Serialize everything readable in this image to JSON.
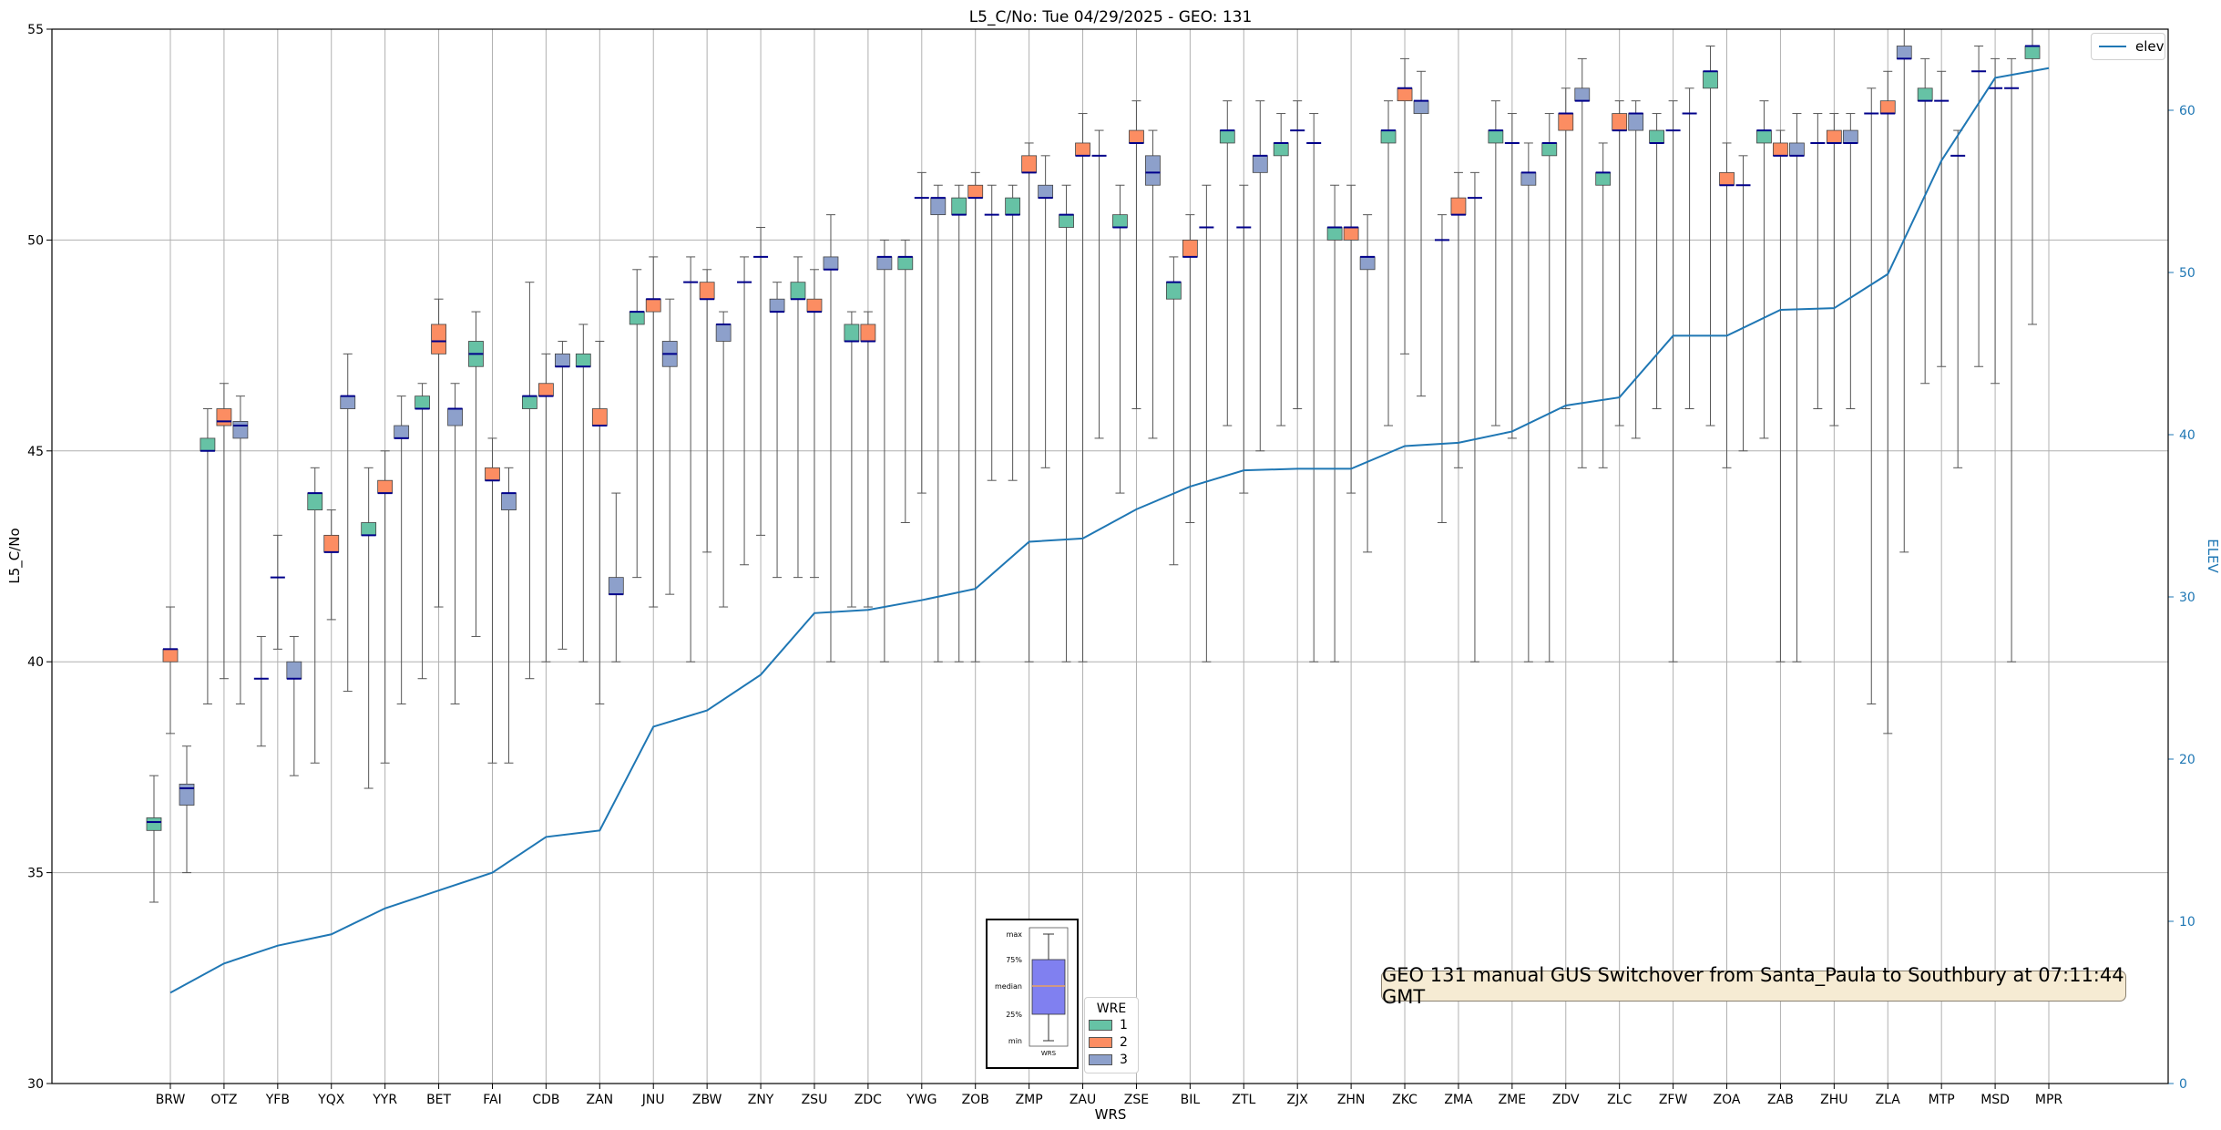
{
  "chart_data": {
    "type": "box",
    "title": "L5_C/No: Tue 04/29/2025 - GEO: 131",
    "xlabel": "WRS",
    "ylabel": "L5_C/No",
    "y2label": "ELEV",
    "ylim": [
      30,
      55
    ],
    "y2lim": [
      0,
      65
    ],
    "yticks": [
      "30",
      "35",
      "40",
      "45",
      "50",
      "55"
    ],
    "y2ticks": [
      "0",
      "10",
      "20",
      "30",
      "40",
      "50",
      "60"
    ],
    "grid": true,
    "categories": [
      "BRW",
      "OTZ",
      "YFB",
      "YQX",
      "YYR",
      "BET",
      "FAI",
      "CDB",
      "ZAN",
      "JNU",
      "ZBW",
      "ZNY",
      "ZSU",
      "ZDC",
      "YWG",
      "ZOB",
      "ZMP",
      "ZAU",
      "ZSE",
      "BIL",
      "ZTL",
      "ZJX",
      "ZHN",
      "ZKC",
      "ZMA",
      "ZME",
      "ZDV",
      "ZLC",
      "ZFW",
      "ZOA",
      "ZAB",
      "ZHU",
      "ZLA",
      "MTP",
      "MSD",
      "MPR"
    ],
    "wre_colors": {
      "1": "#66c2a5",
      "2": "#fc8d62",
      "3": "#8da0cb"
    },
    "median_color": "#00008b",
    "boxes": [
      {
        "cat": "BRW",
        "wre": 1,
        "min": 34.3,
        "q1": 36.0,
        "median": 36.2,
        "q3": 36.3,
        "max": 37.3
      },
      {
        "cat": "BRW",
        "wre": 2,
        "min": 38.3,
        "q1": 40.0,
        "median": 40.3,
        "q3": 40.3,
        "max": 41.3
      },
      {
        "cat": "BRW",
        "wre": 3,
        "min": 35.0,
        "q1": 36.6,
        "median": 37.0,
        "q3": 37.1,
        "max": 38.0
      },
      {
        "cat": "OTZ",
        "wre": 1,
        "min": 39.0,
        "q1": 45.0,
        "median": 45.0,
        "q3": 45.3,
        "max": 46.0
      },
      {
        "cat": "OTZ",
        "wre": 2,
        "min": 39.6,
        "q1": 45.6,
        "median": 45.7,
        "q3": 46.0,
        "max": 46.6
      },
      {
        "cat": "OTZ",
        "wre": 3,
        "min": 39.0,
        "q1": 45.3,
        "median": 45.6,
        "q3": 45.7,
        "max": 46.3
      },
      {
        "cat": "YFB",
        "wre": 1,
        "min": 38.0,
        "q1": 39.6,
        "median": 39.6,
        "q3": 39.6,
        "max": 40.6
      },
      {
        "cat": "YFB",
        "wre": 2,
        "min": 40.3,
        "q1": 42.0,
        "median": 42.0,
        "q3": 42.0,
        "max": 43.0
      },
      {
        "cat": "YFB",
        "wre": 3,
        "min": 37.3,
        "q1": 39.6,
        "median": 39.6,
        "q3": 40.0,
        "max": 40.6
      },
      {
        "cat": "YQX",
        "wre": 1,
        "min": 37.6,
        "q1": 43.6,
        "median": 44.0,
        "q3": 44.0,
        "max": 44.6
      },
      {
        "cat": "YQX",
        "wre": 2,
        "min": 41.0,
        "q1": 42.6,
        "median": 42.6,
        "q3": 43.0,
        "max": 43.6
      },
      {
        "cat": "YQX",
        "wre": 3,
        "min": 39.3,
        "q1": 46.0,
        "median": 46.3,
        "q3": 46.3,
        "max": 47.3
      },
      {
        "cat": "YYR",
        "wre": 1,
        "min": 37.0,
        "q1": 43.0,
        "median": 43.0,
        "q3": 43.3,
        "max": 44.6
      },
      {
        "cat": "YYR",
        "wre": 2,
        "min": 37.6,
        "q1": 44.0,
        "median": 44.0,
        "q3": 44.3,
        "max": 45.0
      },
      {
        "cat": "YYR",
        "wre": 3,
        "min": 39.0,
        "q1": 45.3,
        "median": 45.3,
        "q3": 45.6,
        "max": 46.3
      },
      {
        "cat": "BET",
        "wre": 1,
        "min": 39.6,
        "q1": 46.0,
        "median": 46.0,
        "q3": 46.3,
        "max": 46.6
      },
      {
        "cat": "BET",
        "wre": 2,
        "min": 41.3,
        "q1": 47.3,
        "median": 47.6,
        "q3": 48.0,
        "max": 48.6
      },
      {
        "cat": "BET",
        "wre": 3,
        "min": 39.0,
        "q1": 45.6,
        "median": 46.0,
        "q3": 46.0,
        "max": 46.6
      },
      {
        "cat": "FAI",
        "wre": 1,
        "min": 40.6,
        "q1": 47.0,
        "median": 47.3,
        "q3": 47.6,
        "max": 48.3
      },
      {
        "cat": "FAI",
        "wre": 2,
        "min": 37.6,
        "q1": 44.3,
        "median": 44.3,
        "q3": 44.6,
        "max": 45.3
      },
      {
        "cat": "FAI",
        "wre": 3,
        "min": 37.6,
        "q1": 43.6,
        "median": 44.0,
        "q3": 44.0,
        "max": 44.6
      },
      {
        "cat": "CDB",
        "wre": 1,
        "min": 39.6,
        "q1": 46.0,
        "median": 46.3,
        "q3": 46.3,
        "max": 49.0
      },
      {
        "cat": "CDB",
        "wre": 2,
        "min": 40.0,
        "q1": 46.3,
        "median": 46.3,
        "q3": 46.6,
        "max": 47.3
      },
      {
        "cat": "CDB",
        "wre": 3,
        "min": 40.3,
        "q1": 47.0,
        "median": 47.0,
        "q3": 47.3,
        "max": 47.6
      },
      {
        "cat": "ZAN",
        "wre": 1,
        "min": 40.0,
        "q1": 47.0,
        "median": 47.0,
        "q3": 47.3,
        "max": 48.0
      },
      {
        "cat": "ZAN",
        "wre": 2,
        "min": 39.0,
        "q1": 45.6,
        "median": 45.6,
        "q3": 46.0,
        "max": 47.6
      },
      {
        "cat": "ZAN",
        "wre": 3,
        "min": 40.0,
        "q1": 41.6,
        "median": 41.6,
        "q3": 42.0,
        "max": 44.0
      },
      {
        "cat": "JNU",
        "wre": 1,
        "min": 42.0,
        "q1": 48.0,
        "median": 48.3,
        "q3": 48.3,
        "max": 49.3
      },
      {
        "cat": "JNU",
        "wre": 2,
        "min": 41.3,
        "q1": 48.3,
        "median": 48.6,
        "q3": 48.6,
        "max": 49.6
      },
      {
        "cat": "JNU",
        "wre": 3,
        "min": 41.6,
        "q1": 47.0,
        "median": 47.3,
        "q3": 47.6,
        "max": 48.6
      },
      {
        "cat": "ZBW",
        "wre": 1,
        "min": 40.0,
        "q1": 49.0,
        "median": 49.0,
        "q3": 49.0,
        "max": 49.6
      },
      {
        "cat": "ZBW",
        "wre": 2,
        "min": 42.6,
        "q1": 48.6,
        "median": 48.6,
        "q3": 49.0,
        "max": 49.3
      },
      {
        "cat": "ZBW",
        "wre": 3,
        "min": 41.3,
        "q1": 47.6,
        "median": 48.0,
        "q3": 48.0,
        "max": 48.3
      },
      {
        "cat": "ZNY",
        "wre": 1,
        "min": 42.3,
        "q1": 49.0,
        "median": 49.0,
        "q3": 49.0,
        "max": 49.6
      },
      {
        "cat": "ZNY",
        "wre": 2,
        "min": 43.0,
        "q1": 49.6,
        "median": 49.6,
        "q3": 49.6,
        "max": 50.3
      },
      {
        "cat": "ZNY",
        "wre": 3,
        "min": 42.0,
        "q1": 48.3,
        "median": 48.3,
        "q3": 48.6,
        "max": 49.0
      },
      {
        "cat": "ZSU",
        "wre": 1,
        "min": 42.0,
        "q1": 48.6,
        "median": 48.6,
        "q3": 49.0,
        "max": 49.6
      },
      {
        "cat": "ZSU",
        "wre": 2,
        "min": 42.0,
        "q1": 48.3,
        "median": 48.3,
        "q3": 48.6,
        "max": 49.3
      },
      {
        "cat": "ZSU",
        "wre": 3,
        "min": 40.0,
        "q1": 49.3,
        "median": 49.3,
        "q3": 49.6,
        "max": 50.6
      },
      {
        "cat": "ZDC",
        "wre": 1,
        "min": 41.3,
        "q1": 47.6,
        "median": 47.6,
        "q3": 48.0,
        "max": 48.3
      },
      {
        "cat": "ZDC",
        "wre": 2,
        "min": 41.3,
        "q1": 47.6,
        "median": 47.6,
        "q3": 48.0,
        "max": 48.3
      },
      {
        "cat": "ZDC",
        "wre": 3,
        "min": 40.0,
        "q1": 49.3,
        "median": 49.6,
        "q3": 49.6,
        "max": 50.0
      },
      {
        "cat": "YWG",
        "wre": 1,
        "min": 43.3,
        "q1": 49.3,
        "median": 49.6,
        "q3": 49.6,
        "max": 50.0
      },
      {
        "cat": "YWG",
        "wre": 2,
        "min": 44.0,
        "q1": 51.0,
        "median": 51.0,
        "q3": 51.0,
        "max": 51.6
      },
      {
        "cat": "YWG",
        "wre": 3,
        "min": 40.0,
        "q1": 50.6,
        "median": 51.0,
        "q3": 51.0,
        "max": 51.3
      },
      {
        "cat": "ZOB",
        "wre": 1,
        "min": 40.0,
        "q1": 50.6,
        "median": 50.6,
        "q3": 51.0,
        "max": 51.3
      },
      {
        "cat": "ZOB",
        "wre": 2,
        "min": 40.0,
        "q1": 51.0,
        "median": 51.0,
        "q3": 51.3,
        "max": 51.6
      },
      {
        "cat": "ZOB",
        "wre": 3,
        "min": 44.3,
        "q1": 50.6,
        "median": 50.6,
        "q3": 50.6,
        "max": 51.3
      },
      {
        "cat": "ZMP",
        "wre": 1,
        "min": 44.3,
        "q1": 50.6,
        "median": 50.6,
        "q3": 51.0,
        "max": 51.3
      },
      {
        "cat": "ZMP",
        "wre": 2,
        "min": 40.0,
        "q1": 51.6,
        "median": 51.6,
        "q3": 52.0,
        "max": 52.3
      },
      {
        "cat": "ZMP",
        "wre": 3,
        "min": 44.6,
        "q1": 51.0,
        "median": 51.0,
        "q3": 51.3,
        "max": 52.0
      },
      {
        "cat": "ZAU",
        "wre": 1,
        "min": 40.0,
        "q1": 50.3,
        "median": 50.6,
        "q3": 50.6,
        "max": 51.3
      },
      {
        "cat": "ZAU",
        "wre": 2,
        "min": 40.0,
        "q1": 52.0,
        "median": 52.0,
        "q3": 52.3,
        "max": 53.0
      },
      {
        "cat": "ZAU",
        "wre": 3,
        "min": 45.3,
        "q1": 52.0,
        "median": 52.0,
        "q3": 52.0,
        "max": 52.6
      },
      {
        "cat": "ZSE",
        "wre": 1,
        "min": 44.0,
        "q1": 50.3,
        "median": 50.3,
        "q3": 50.6,
        "max": 51.3
      },
      {
        "cat": "ZSE",
        "wre": 2,
        "min": 46.0,
        "q1": 52.3,
        "median": 52.3,
        "q3": 52.6,
        "max": 53.3
      },
      {
        "cat": "ZSE",
        "wre": 3,
        "min": 45.3,
        "q1": 51.3,
        "median": 51.6,
        "q3": 52.0,
        "max": 52.6
      },
      {
        "cat": "BIL",
        "wre": 1,
        "min": 42.3,
        "q1": 48.6,
        "median": 49.0,
        "q3": 49.0,
        "max": 49.6
      },
      {
        "cat": "BIL",
        "wre": 2,
        "min": 43.3,
        "q1": 49.6,
        "median": 49.6,
        "q3": 50.0,
        "max": 50.6
      },
      {
        "cat": "BIL",
        "wre": 3,
        "min": 40.0,
        "q1": 50.3,
        "median": 50.3,
        "q3": 50.3,
        "max": 51.3
      },
      {
        "cat": "ZTL",
        "wre": 1,
        "min": 45.6,
        "q1": 52.3,
        "median": 52.6,
        "q3": 52.6,
        "max": 53.3
      },
      {
        "cat": "ZTL",
        "wre": 2,
        "min": 44.0,
        "q1": 50.3,
        "median": 50.3,
        "q3": 50.3,
        "max": 51.3
      },
      {
        "cat": "ZTL",
        "wre": 3,
        "min": 45.0,
        "q1": 51.6,
        "median": 52.0,
        "q3": 52.0,
        "max": 53.3
      },
      {
        "cat": "ZJX",
        "wre": 1,
        "min": 45.6,
        "q1": 52.0,
        "median": 52.3,
        "q3": 52.3,
        "max": 53.0
      },
      {
        "cat": "ZJX",
        "wre": 2,
        "min": 46.0,
        "q1": 52.6,
        "median": 52.6,
        "q3": 52.6,
        "max": 53.3
      },
      {
        "cat": "ZJX",
        "wre": 3,
        "min": 40.0,
        "q1": 52.3,
        "median": 52.3,
        "q3": 52.3,
        "max": 53.0
      },
      {
        "cat": "ZHN",
        "wre": 1,
        "min": 40.0,
        "q1": 50.0,
        "median": 50.3,
        "q3": 50.3,
        "max": 51.3
      },
      {
        "cat": "ZHN",
        "wre": 2,
        "min": 44.0,
        "q1": 50.0,
        "median": 50.3,
        "q3": 50.3,
        "max": 51.3
      },
      {
        "cat": "ZHN",
        "wre": 3,
        "min": 42.6,
        "q1": 49.3,
        "median": 49.6,
        "q3": 49.6,
        "max": 50.6
      },
      {
        "cat": "ZKC",
        "wre": 1,
        "min": 45.6,
        "q1": 52.3,
        "median": 52.6,
        "q3": 52.6,
        "max": 53.3
      },
      {
        "cat": "ZKC",
        "wre": 2,
        "min": 47.3,
        "q1": 53.3,
        "median": 53.6,
        "q3": 53.6,
        "max": 54.3
      },
      {
        "cat": "ZKC",
        "wre": 3,
        "min": 46.3,
        "q1": 53.0,
        "median": 53.3,
        "q3": 53.3,
        "max": 54.0
      },
      {
        "cat": "ZMA",
        "wre": 1,
        "min": 43.3,
        "q1": 50.0,
        "median": 50.0,
        "q3": 50.0,
        "max": 50.6
      },
      {
        "cat": "ZMA",
        "wre": 2,
        "min": 44.6,
        "q1": 50.6,
        "median": 50.6,
        "q3": 51.0,
        "max": 51.6
      },
      {
        "cat": "ZMA",
        "wre": 3,
        "min": 40.0,
        "q1": 51.0,
        "median": 51.0,
        "q3": 51.0,
        "max": 51.6
      },
      {
        "cat": "ZME",
        "wre": 1,
        "min": 45.6,
        "q1": 52.3,
        "median": 52.6,
        "q3": 52.6,
        "max": 53.3
      },
      {
        "cat": "ZME",
        "wre": 2,
        "min": 45.3,
        "q1": 52.3,
        "median": 52.3,
        "q3": 52.3,
        "max": 53.0
      },
      {
        "cat": "ZME",
        "wre": 3,
        "min": 40.0,
        "q1": 51.3,
        "median": 51.6,
        "q3": 51.6,
        "max": 52.3
      },
      {
        "cat": "ZDV",
        "wre": 1,
        "min": 40.0,
        "q1": 52.0,
        "median": 52.3,
        "q3": 52.3,
        "max": 53.0
      },
      {
        "cat": "ZDV",
        "wre": 2,
        "min": 46.0,
        "q1": 52.6,
        "median": 53.0,
        "q3": 53.0,
        "max": 53.6
      },
      {
        "cat": "ZDV",
        "wre": 3,
        "min": 44.6,
        "q1": 53.3,
        "median": 53.3,
        "q3": 53.6,
        "max": 54.3
      },
      {
        "cat": "ZLC",
        "wre": 1,
        "min": 44.6,
        "q1": 51.3,
        "median": 51.6,
        "q3": 51.6,
        "max": 52.3
      },
      {
        "cat": "ZLC",
        "wre": 2,
        "min": 45.6,
        "q1": 52.6,
        "median": 52.6,
        "q3": 53.0,
        "max": 53.3
      },
      {
        "cat": "ZLC",
        "wre": 3,
        "min": 45.3,
        "q1": 52.6,
        "median": 53.0,
        "q3": 53.0,
        "max": 53.3
      },
      {
        "cat": "ZFW",
        "wre": 1,
        "min": 46.0,
        "q1": 52.3,
        "median": 52.3,
        "q3": 52.6,
        "max": 53.0
      },
      {
        "cat": "ZFW",
        "wre": 2,
        "min": 40.0,
        "q1": 52.6,
        "median": 52.6,
        "q3": 52.6,
        "max": 53.3
      },
      {
        "cat": "ZFW",
        "wre": 3,
        "min": 46.0,
        "q1": 53.0,
        "median": 53.0,
        "q3": 53.0,
        "max": 53.6
      },
      {
        "cat": "ZOA",
        "wre": 1,
        "min": 45.6,
        "q1": 53.6,
        "median": 54.0,
        "q3": 54.0,
        "max": 54.6
      },
      {
        "cat": "ZOA",
        "wre": 2,
        "min": 44.6,
        "q1": 51.3,
        "median": 51.3,
        "q3": 51.6,
        "max": 52.3
      },
      {
        "cat": "ZOA",
        "wre": 3,
        "min": 45.0,
        "q1": 51.3,
        "median": 51.3,
        "q3": 51.3,
        "max": 52.0
      },
      {
        "cat": "ZAB",
        "wre": 1,
        "min": 45.3,
        "q1": 52.3,
        "median": 52.6,
        "q3": 52.6,
        "max": 53.3
      },
      {
        "cat": "ZAB",
        "wre": 2,
        "min": 40.0,
        "q1": 52.0,
        "median": 52.0,
        "q3": 52.3,
        "max": 52.6
      },
      {
        "cat": "ZAB",
        "wre": 3,
        "min": 40.0,
        "q1": 52.0,
        "median": 52.0,
        "q3": 52.3,
        "max": 53.0
      },
      {
        "cat": "ZHU",
        "wre": 1,
        "min": 46.0,
        "q1": 52.3,
        "median": 52.3,
        "q3": 52.3,
        "max": 53.0
      },
      {
        "cat": "ZHU",
        "wre": 2,
        "min": 45.6,
        "q1": 52.3,
        "median": 52.3,
        "q3": 52.6,
        "max": 53.0
      },
      {
        "cat": "ZHU",
        "wre": 3,
        "min": 46.0,
        "q1": 52.3,
        "median": 52.3,
        "q3": 52.6,
        "max": 53.0
      },
      {
        "cat": "ZLA",
        "wre": 1,
        "min": 39.0,
        "q1": 53.0,
        "median": 53.0,
        "q3": 53.0,
        "max": 53.6
      },
      {
        "cat": "ZLA",
        "wre": 2,
        "min": 38.3,
        "q1": 53.0,
        "median": 53.0,
        "q3": 53.3,
        "max": 54.0
      },
      {
        "cat": "ZLA",
        "wre": 3,
        "min": 42.6,
        "q1": 54.3,
        "median": 54.3,
        "q3": 54.6,
        "max": 55.0
      },
      {
        "cat": "MTP",
        "wre": 1,
        "min": 46.6,
        "q1": 53.3,
        "median": 53.3,
        "q3": 53.6,
        "max": 54.3
      },
      {
        "cat": "MTP",
        "wre": 2,
        "min": 47.0,
        "q1": 53.3,
        "median": 53.3,
        "q3": 53.3,
        "max": 54.0
      },
      {
        "cat": "MTP",
        "wre": 3,
        "min": 44.6,
        "q1": 52.0,
        "median": 52.0,
        "q3": 52.0,
        "max": 52.6
      },
      {
        "cat": "MSD",
        "wre": 1,
        "min": 47.0,
        "q1": 54.0,
        "median": 54.0,
        "q3": 54.0,
        "max": 54.6
      },
      {
        "cat": "MSD",
        "wre": 2,
        "min": 46.6,
        "q1": 53.6,
        "median": 53.6,
        "q3": 53.6,
        "max": 54.3
      },
      {
        "cat": "MSD",
        "wre": 3,
        "min": 40.0,
        "q1": 53.6,
        "median": 53.6,
        "q3": 53.6,
        "max": 54.3
      },
      {
        "cat": "MPR",
        "wre": 1,
        "min": 48.0,
        "q1": 54.3,
        "median": 54.6,
        "q3": 54.6,
        "max": 55.0
      }
    ],
    "series": [
      {
        "name": "elev",
        "axis": "y2",
        "color": "#1f77b4",
        "values": [
          5.6,
          7.4,
          8.5,
          9.2,
          10.8,
          11.9,
          13.0,
          15.2,
          15.6,
          22.0,
          23.0,
          25.2,
          29.0,
          29.2,
          29.8,
          30.5,
          33.4,
          33.6,
          35.4,
          36.8,
          37.8,
          37.9,
          37.9,
          39.3,
          39.5,
          40.2,
          41.8,
          42.3,
          46.1,
          46.1,
          47.7,
          47.8,
          49.9,
          56.9,
          62.0,
          62.6
        ]
      }
    ],
    "legends": {
      "elev": "elev",
      "wre_title": "WRE",
      "wre_labels": [
        "1",
        "2",
        "3"
      ],
      "inset_labels": [
        "max",
        "75%",
        "median",
        "25%",
        "min"
      ],
      "inset_xlabel": "WRS"
    },
    "annotation": "GEO 131 manual GUS Switchover from Santa_Paula to Southbury at 07:11:44 GMT"
  }
}
